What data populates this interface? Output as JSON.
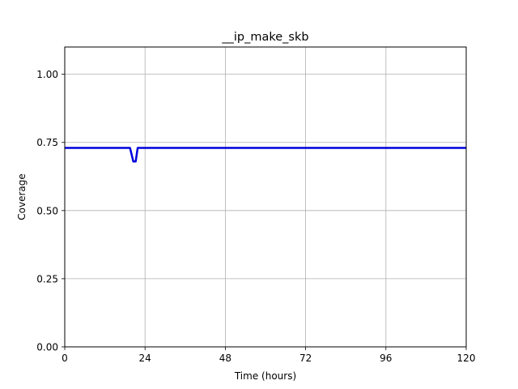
{
  "chart_data": {
    "type": "line",
    "title": "__ip_make_skb",
    "xlabel": "Time (hours)",
    "ylabel": "Coverage",
    "xlim": [
      0,
      120
    ],
    "ylim": [
      0,
      1.1
    ],
    "xticks": [
      0,
      24,
      48,
      72,
      96,
      120
    ],
    "xtick_labels": [
      "0",
      "24",
      "48",
      "72",
      "96",
      "120"
    ],
    "yticks": [
      0,
      0.25,
      0.5,
      0.75,
      1.0
    ],
    "ytick_labels": [
      "0.00",
      "0.25",
      "0.50",
      "0.75",
      "1.00"
    ],
    "grid": true,
    "series": [
      {
        "color": "#0000dd",
        "x": [
          0,
          19.5,
          20.5,
          21.2,
          21.8,
          120
        ],
        "y": [
          0.73,
          0.73,
          0.68,
          0.68,
          0.73,
          0.73
        ]
      }
    ]
  }
}
